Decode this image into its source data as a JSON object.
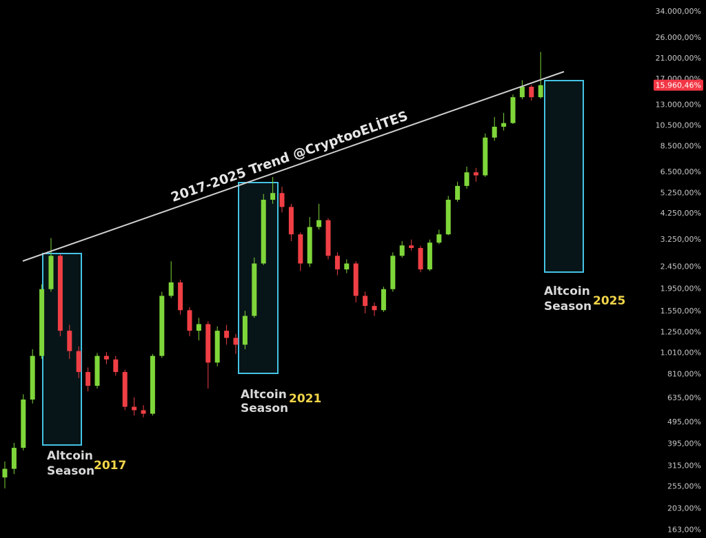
{
  "chart_data": {
    "type": "candlestick",
    "log_scale": true,
    "grid": false,
    "up_color": "#7fd63a",
    "down_color": "#ef3f45",
    "categories": [
      null,
      null,
      null,
      null,
      null,
      null,
      null,
      null,
      null,
      null,
      null,
      null,
      null,
      null,
      null,
      null,
      null,
      null,
      null,
      null,
      null,
      null,
      null,
      null,
      null,
      null,
      null,
      null,
      null,
      null,
      null,
      null,
      null,
      null,
      null,
      null,
      null,
      null,
      null,
      null,
      null,
      null,
      null,
      null,
      null,
      null,
      null,
      null,
      null,
      null,
      null,
      null,
      null,
      null,
      null,
      null,
      null,
      null,
      null
    ],
    "open": [
      280,
      306,
      380,
      625,
      980,
      1950,
      2750,
      1270,
      1030,
      830,
      720,
      980,
      945,
      830,
      580,
      560,
      540,
      980,
      1820,
      2090,
      1570,
      1270,
      1360,
      915,
      1270,
      1180,
      1100,
      1480,
      2540,
      4900,
      5250,
      4550,
      3430,
      2540,
      3700,
      3970,
      2750,
      2390,
      2540,
      1820,
      1640,
      1570,
      1950,
      2750,
      3060,
      2980,
      2390,
      3150,
      3430,
      4900,
      5650,
      6500,
      6300,
      9300,
      10400,
      10800,
      14100,
      15700,
      14100
    ],
    "high": [
      330,
      400,
      660,
      1050,
      2050,
      3300,
      2800,
      1350,
      1080,
      870,
      1010,
      1020,
      980,
      850,
      640,
      590,
      1000,
      1900,
      2600,
      2150,
      1620,
      1450,
      1400,
      1330,
      1350,
      1230,
      1560,
      2700,
      5200,
      6200,
      5600,
      4700,
      3500,
      4100,
      4700,
      4050,
      2850,
      2650,
      2600,
      1900,
      1700,
      2000,
      2850,
      3200,
      3250,
      3050,
      3250,
      3600,
      5100,
      5900,
      6900,
      6800,
      9700,
      11500,
      12000,
      14500,
      16800,
      16000,
      22500
    ],
    "low": [
      250,
      290,
      370,
      600,
      950,
      1900,
      1200,
      950,
      780,
      680,
      700,
      900,
      800,
      560,
      530,
      520,
      530,
      960,
      1780,
      1500,
      1200,
      1150,
      700,
      880,
      1100,
      1000,
      1050,
      1450,
      2500,
      4700,
      4300,
      3200,
      2350,
      2450,
      3600,
      2650,
      2250,
      2300,
      1700,
      1520,
      1480,
      1540,
      1900,
      2700,
      2900,
      2320,
      2350,
      3100,
      3400,
      4800,
      5500,
      5900,
      6200,
      9000,
      10000,
      10700,
      13800,
      13600,
      13900
    ],
    "close": [
      306,
      380,
      625,
      980,
      1950,
      2750,
      1270,
      1030,
      830,
      720,
      980,
      945,
      830,
      580,
      560,
      540,
      980,
      1820,
      2090,
      1570,
      1270,
      1360,
      915,
      1270,
      1180,
      1100,
      1480,
      2540,
      4900,
      5250,
      4550,
      3430,
      2540,
      3700,
      3970,
      2750,
      2390,
      2540,
      1820,
      1640,
      1570,
      1950,
      2750,
      3060,
      2980,
      2390,
      3150,
      3430,
      4900,
      5650,
      6500,
      6300,
      9300,
      10400,
      10800,
      14100,
      15700,
      14100,
      15960.46
    ],
    "ylim": [
      150,
      38400
    ],
    "yticks": [
      {
        "value": 34000,
        "label": "34.000,00%"
      },
      {
        "value": 26000,
        "label": "26.000,00%"
      },
      {
        "value": 21000,
        "label": "21.000,00%"
      },
      {
        "value": 17000,
        "label": "17.000,00%"
      },
      {
        "value": 13000,
        "label": "13.000,00%"
      },
      {
        "value": 10500,
        "label": "10.500,00%"
      },
      {
        "value": 8500,
        "label": "8.500,00%"
      },
      {
        "value": 6500,
        "label": "6.500,00%"
      },
      {
        "value": 5250,
        "label": "5.250,00%"
      },
      {
        "value": 4250,
        "label": "4.250,00%"
      },
      {
        "value": 3250,
        "label": "3.250,00%"
      },
      {
        "value": 2450,
        "label": "2.450,00%"
      },
      {
        "value": 1950,
        "label": "1.950,00%"
      },
      {
        "value": 1550,
        "label": "1.550,00%"
      },
      {
        "value": 1250,
        "label": "1.250,00%"
      },
      {
        "value": 1010,
        "label": "1.010,00%"
      },
      {
        "value": 810,
        "label": "810,00%"
      },
      {
        "value": 635,
        "label": "635,00%"
      },
      {
        "value": 495,
        "label": "495,00%"
      },
      {
        "value": 395,
        "label": "395,00%"
      },
      {
        "value": 315,
        "label": "315,00%"
      },
      {
        "value": 255,
        "label": "255,00%"
      },
      {
        "value": 203,
        "label": "203,00%"
      },
      {
        "value": 163,
        "label": "163,00%"
      }
    ],
    "last_price": {
      "value": 15960.46,
      "label": "15.960,46%",
      "color": "#f23645"
    },
    "trend_label": "2017-2025 Trend @CryptooELİTES",
    "annotations": [
      {
        "lines": [
          "Altcoin",
          "Season"
        ],
        "year": "2017"
      },
      {
        "lines": [
          "Altcoin",
          "Season"
        ],
        "year": "2021"
      },
      {
        "lines": [
          "Altcoin",
          "Season"
        ],
        "year": "2025"
      }
    ]
  }
}
